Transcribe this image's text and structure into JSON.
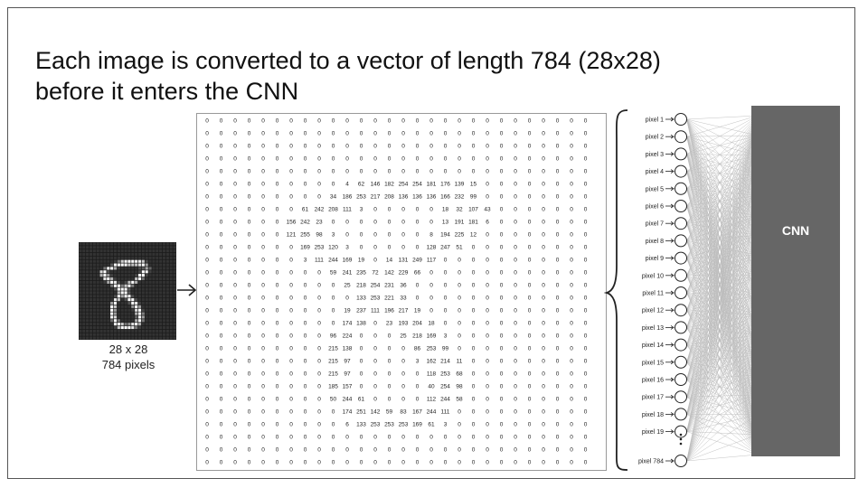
{
  "slide": {
    "title_line1": "Each image is converted to a vector of length 784 (28x28)",
    "title_line2": "before it enters the CNN"
  },
  "digit": {
    "caption_line1": "28 x 28",
    "caption_line2": "784 pixels"
  },
  "network": {
    "cnn_label": "CNN",
    "pixel_labels": [
      "pixel 1",
      "pixel 2",
      "pixel 3",
      "pixel 4",
      "pixel 5",
      "pixel 6",
      "pixel 7",
      "pixel 8",
      "pixel 9",
      "pixel 10",
      "pixel 11",
      "pixel 12",
      "pixel 13",
      "pixel 14",
      "pixel 15",
      "pixel 16",
      "pixel 17",
      "pixel 18",
      "pixel 19"
    ],
    "last_pixel_label": "pixel 784"
  },
  "matrix_rows": [
    [
      0,
      0,
      0,
      0,
      0,
      0,
      0,
      0,
      0,
      0,
      0,
      0,
      0,
      0,
      0,
      0,
      0,
      0,
      0,
      0,
      0,
      0,
      0,
      0,
      0,
      0,
      0,
      0
    ],
    [
      0,
      0,
      0,
      0,
      0,
      0,
      0,
      0,
      0,
      0,
      0,
      0,
      0,
      0,
      0,
      0,
      0,
      0,
      0,
      0,
      0,
      0,
      0,
      0,
      0,
      0,
      0,
      0
    ],
    [
      0,
      0,
      0,
      0,
      0,
      0,
      0,
      0,
      0,
      0,
      0,
      0,
      0,
      0,
      0,
      0,
      0,
      0,
      0,
      0,
      0,
      0,
      0,
      0,
      0,
      0,
      0,
      0
    ],
    [
      0,
      0,
      0,
      0,
      0,
      0,
      0,
      0,
      0,
      0,
      0,
      0,
      0,
      0,
      0,
      0,
      0,
      0,
      0,
      0,
      0,
      0,
      0,
      0,
      0,
      0,
      0,
      0
    ],
    [
      0,
      0,
      0,
      0,
      0,
      0,
      0,
      0,
      0,
      0,
      0,
      0,
      0,
      0,
      0,
      0,
      0,
      0,
      0,
      0,
      0,
      0,
      0,
      0,
      0,
      0,
      0,
      0
    ],
    [
      0,
      0,
      0,
      0,
      0,
      0,
      0,
      0,
      0,
      0,
      4,
      62,
      146,
      182,
      254,
      254,
      181,
      176,
      139,
      15,
      0,
      0,
      0,
      0,
      0,
      0,
      0,
      0
    ],
    [
      0,
      0,
      0,
      0,
      0,
      0,
      0,
      0,
      0,
      34,
      186,
      253,
      217,
      208,
      136,
      136,
      136,
      166,
      232,
      99,
      0,
      0,
      0,
      0,
      0,
      0,
      0,
      0
    ],
    [
      0,
      0,
      0,
      0,
      0,
      0,
      0,
      61,
      242,
      208,
      111,
      3,
      0,
      0,
      0,
      0,
      0,
      18,
      32,
      107,
      43,
      0,
      0,
      0,
      0,
      0,
      0,
      0
    ],
    [
      0,
      0,
      0,
      0,
      0,
      0,
      156,
      242,
      23,
      0,
      0,
      0,
      0,
      0,
      0,
      0,
      0,
      13,
      191,
      181,
      6,
      0,
      0,
      0,
      0,
      0,
      0,
      0
    ],
    [
      0,
      0,
      0,
      0,
      0,
      0,
      121,
      255,
      98,
      3,
      0,
      0,
      0,
      0,
      0,
      0,
      8,
      194,
      225,
      12,
      0,
      0,
      0,
      0,
      0,
      0,
      0,
      0
    ],
    [
      0,
      0,
      0,
      0,
      0,
      0,
      0,
      169,
      253,
      120,
      3,
      0,
      0,
      0,
      0,
      0,
      128,
      247,
      51,
      0,
      0,
      0,
      0,
      0,
      0,
      0,
      0,
      0
    ],
    [
      0,
      0,
      0,
      0,
      0,
      0,
      0,
      3,
      111,
      244,
      169,
      19,
      0,
      14,
      131,
      249,
      117,
      0,
      0,
      0,
      0,
      0,
      0,
      0,
      0,
      0,
      0,
      0
    ],
    [
      0,
      0,
      0,
      0,
      0,
      0,
      0,
      0,
      0,
      59,
      241,
      235,
      72,
      142,
      229,
      66,
      0,
      0,
      0,
      0,
      0,
      0,
      0,
      0,
      0,
      0,
      0,
      0
    ],
    [
      0,
      0,
      0,
      0,
      0,
      0,
      0,
      0,
      0,
      0,
      25,
      218,
      254,
      231,
      36,
      0,
      0,
      0,
      0,
      0,
      0,
      0,
      0,
      0,
      0,
      0,
      0,
      0
    ],
    [
      0,
      0,
      0,
      0,
      0,
      0,
      0,
      0,
      0,
      0,
      0,
      133,
      253,
      221,
      33,
      0,
      0,
      0,
      0,
      0,
      0,
      0,
      0,
      0,
      0,
      0,
      0,
      0
    ],
    [
      0,
      0,
      0,
      0,
      0,
      0,
      0,
      0,
      0,
      0,
      19,
      237,
      111,
      196,
      217,
      19,
      0,
      0,
      0,
      0,
      0,
      0,
      0,
      0,
      0,
      0,
      0,
      0
    ],
    [
      0,
      0,
      0,
      0,
      0,
      0,
      0,
      0,
      0,
      0,
      174,
      138,
      0,
      23,
      193,
      204,
      18,
      0,
      0,
      0,
      0,
      0,
      0,
      0,
      0,
      0,
      0,
      0
    ],
    [
      0,
      0,
      0,
      0,
      0,
      0,
      0,
      0,
      0,
      96,
      224,
      0,
      0,
      0,
      25,
      218,
      169,
      3,
      0,
      0,
      0,
      0,
      0,
      0,
      0,
      0,
      0,
      0
    ],
    [
      0,
      0,
      0,
      0,
      0,
      0,
      0,
      0,
      0,
      215,
      138,
      0,
      0,
      0,
      0,
      86,
      253,
      99,
      0,
      0,
      0,
      0,
      0,
      0,
      0,
      0,
      0,
      0
    ],
    [
      0,
      0,
      0,
      0,
      0,
      0,
      0,
      0,
      0,
      215,
      97,
      0,
      0,
      0,
      0,
      3,
      162,
      214,
      11,
      0,
      0,
      0,
      0,
      0,
      0,
      0,
      0,
      0
    ],
    [
      0,
      0,
      0,
      0,
      0,
      0,
      0,
      0,
      0,
      215,
      97,
      0,
      0,
      0,
      0,
      0,
      118,
      253,
      68,
      0,
      0,
      0,
      0,
      0,
      0,
      0,
      0,
      0
    ],
    [
      0,
      0,
      0,
      0,
      0,
      0,
      0,
      0,
      0,
      185,
      157,
      0,
      0,
      0,
      0,
      0,
      40,
      254,
      98,
      0,
      0,
      0,
      0,
      0,
      0,
      0,
      0,
      0
    ],
    [
      0,
      0,
      0,
      0,
      0,
      0,
      0,
      0,
      0,
      50,
      244,
      61,
      0,
      0,
      0,
      0,
      112,
      244,
      58,
      0,
      0,
      0,
      0,
      0,
      0,
      0,
      0,
      0
    ],
    [
      0,
      0,
      0,
      0,
      0,
      0,
      0,
      0,
      0,
      0,
      174,
      251,
      142,
      59,
      83,
      167,
      244,
      111,
      0,
      0,
      0,
      0,
      0,
      0,
      0,
      0,
      0,
      0
    ],
    [
      0,
      0,
      0,
      0,
      0,
      0,
      0,
      0,
      0,
      0,
      6,
      133,
      253,
      253,
      253,
      169,
      61,
      3,
      0,
      0,
      0,
      0,
      0,
      0,
      0,
      0,
      0,
      0
    ],
    [
      0,
      0,
      0,
      0,
      0,
      0,
      0,
      0,
      0,
      0,
      0,
      0,
      0,
      0,
      0,
      0,
      0,
      0,
      0,
      0,
      0,
      0,
      0,
      0,
      0,
      0,
      0,
      0
    ],
    [
      0,
      0,
      0,
      0,
      0,
      0,
      0,
      0,
      0,
      0,
      0,
      0,
      0,
      0,
      0,
      0,
      0,
      0,
      0,
      0,
      0,
      0,
      0,
      0,
      0,
      0,
      0,
      0
    ],
    [
      0,
      0,
      0,
      0,
      0,
      0,
      0,
      0,
      0,
      0,
      0,
      0,
      0,
      0,
      0,
      0,
      0,
      0,
      0,
      0,
      0,
      0,
      0,
      0,
      0,
      0,
      0,
      0
    ]
  ],
  "colors": {
    "cnn_box": "#666666",
    "digit_background": "#1a1a1a",
    "digit_stroke": "#ffffff",
    "connection_lines": "#bbbbbb"
  },
  "icons": {
    "input_arrow": "right-arrow-icon",
    "brace": "curly-brace-icon",
    "ellipsis": "vertical-dots-icon"
  }
}
